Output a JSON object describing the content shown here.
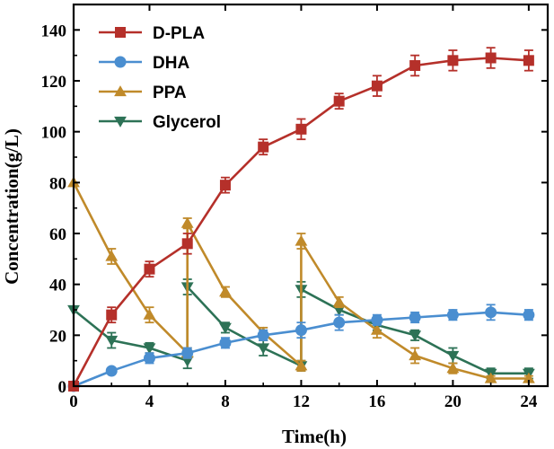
{
  "chart_data": {
    "type": "line",
    "title": "",
    "xlabel": "Time(h)",
    "ylabel": "Concentration(g/L)",
    "xlim": [
      0,
      25
    ],
    "ylim": [
      0,
      150
    ],
    "xticks": [
      0,
      4,
      8,
      12,
      16,
      20,
      24
    ],
    "yticks": [
      0,
      20,
      40,
      60,
      80,
      100,
      120,
      140
    ],
    "legend_position": "top-left",
    "series": [
      {
        "name": "D-PLA",
        "color": "#b5302a",
        "marker": "square",
        "x": [
          0,
          2,
          4,
          6,
          8,
          10,
          12,
          14,
          16,
          18,
          20,
          22,
          24
        ],
        "y": [
          0,
          28,
          46,
          56,
          79,
          94,
          101,
          112,
          118,
          126,
          128,
          129,
          128
        ],
        "err": [
          0,
          3,
          3,
          4,
          3,
          3,
          4,
          3,
          4,
          4,
          4,
          4,
          4
        ]
      },
      {
        "name": "DHA",
        "color": "#4a8ed0",
        "marker": "circle",
        "x": [
          0,
          2,
          4,
          6,
          8,
          10,
          12,
          14,
          16,
          18,
          20,
          22,
          24
        ],
        "y": [
          0,
          6,
          11,
          13,
          17,
          20,
          22,
          25,
          26,
          27,
          28,
          29,
          28
        ],
        "err": [
          0,
          1,
          2,
          2,
          2,
          2,
          3,
          3,
          2,
          2,
          2,
          3,
          2
        ]
      },
      {
        "name": "PPA",
        "color": "#c08a2a",
        "marker": "triangle-up",
        "x": [
          0,
          2,
          4,
          6,
          6,
          8,
          10,
          12,
          12,
          14,
          16,
          18,
          20,
          22,
          24
        ],
        "y": [
          80,
          51,
          28,
          13,
          64,
          37,
          21,
          8,
          57,
          33,
          22,
          12,
          7,
          3,
          3
        ],
        "err": [
          0,
          3,
          3,
          2,
          2,
          2,
          2,
          2,
          3,
          2,
          3,
          3,
          2,
          1,
          1
        ]
      },
      {
        "name": "Glycerol",
        "color": "#2d7256",
        "marker": "triangle-down",
        "x": [
          0,
          2,
          4,
          6,
          6,
          8,
          10,
          12,
          12,
          14,
          16,
          18,
          20,
          22,
          24
        ],
        "y": [
          30,
          18,
          15,
          10,
          39,
          23,
          15,
          8,
          38,
          30,
          24,
          20,
          12,
          5,
          5
        ],
        "err": [
          0,
          3,
          2,
          3,
          3,
          2,
          3,
          2,
          3,
          2,
          2,
          2,
          3,
          2,
          2
        ]
      }
    ]
  }
}
